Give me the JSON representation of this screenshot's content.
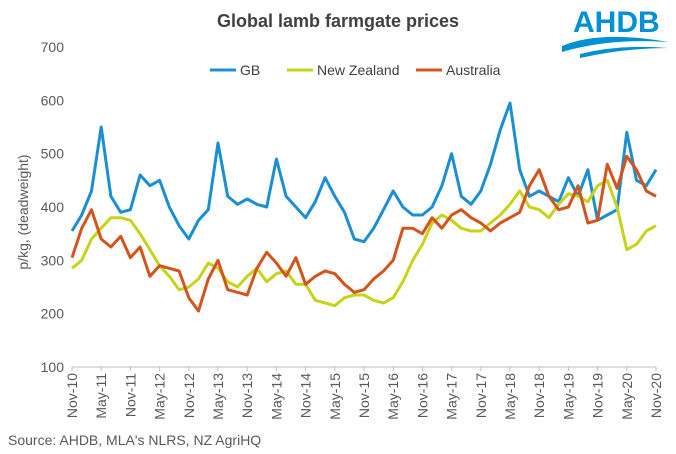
{
  "logo": {
    "text": "AHDB"
  },
  "source": "Source: AHDB, MLA's NLRS, NZ AgriHQ",
  "colors": {
    "GB": "#1b8fd3",
    "New Zealand": "#c5d41a",
    "Australia": "#d4541e",
    "logo": "#0090d4"
  },
  "chart_data": {
    "type": "line",
    "title": "Global lamb farmgate prices",
    "ylabel": "p/kg, (deadweight)",
    "xlabel": "",
    "ylim": [
      100,
      700
    ],
    "yticks": [
      100,
      200,
      300,
      400,
      500,
      600,
      700
    ],
    "grid": false,
    "legend": "top-center",
    "x_tick_labels": [
      "Nov-10",
      "May-11",
      "Nov-11",
      "May-12",
      "Nov-12",
      "May-13",
      "Nov-13",
      "May-14",
      "Nov-14",
      "May-15",
      "Nov-15",
      "May-16",
      "Nov-16",
      "May-17",
      "Nov-17",
      "May-18",
      "Nov-18",
      "May-19",
      "Nov-19",
      "May-20",
      "Nov-20"
    ],
    "x": [
      "Nov-10",
      "Jan-11",
      "Mar-11",
      "May-11",
      "Jul-11",
      "Sep-11",
      "Nov-11",
      "Jan-12",
      "Mar-12",
      "May-12",
      "Jul-12",
      "Sep-12",
      "Nov-12",
      "Jan-13",
      "Mar-13",
      "May-13",
      "Jul-13",
      "Sep-13",
      "Nov-13",
      "Jan-14",
      "Mar-14",
      "May-14",
      "Jul-14",
      "Sep-14",
      "Nov-14",
      "Jan-15",
      "Mar-15",
      "May-15",
      "Jul-15",
      "Sep-15",
      "Nov-15",
      "Jan-16",
      "Mar-16",
      "May-16",
      "Jul-16",
      "Sep-16",
      "Nov-16",
      "Jan-17",
      "Mar-17",
      "May-17",
      "Jul-17",
      "Sep-17",
      "Nov-17",
      "Jan-18",
      "Mar-18",
      "May-18",
      "Jul-18",
      "Sep-18",
      "Nov-18",
      "Jan-19",
      "Mar-19",
      "May-19",
      "Jul-19",
      "Sep-19",
      "Nov-19",
      "Jan-20",
      "Mar-20",
      "May-20",
      "Jul-20",
      "Sep-20",
      "Nov-20"
    ],
    "series": [
      {
        "name": "GB",
        "values": [
          355,
          385,
          430,
          550,
          420,
          390,
          395,
          460,
          440,
          450,
          400,
          365,
          340,
          375,
          395,
          520,
          420,
          405,
          415,
          405,
          400,
          490,
          420,
          400,
          380,
          410,
          455,
          420,
          390,
          340,
          335,
          360,
          395,
          430,
          400,
          385,
          385,
          400,
          440,
          500,
          420,
          405,
          430,
          480,
          545,
          595,
          470,
          420,
          430,
          420,
          410,
          455,
          420,
          470,
          375,
          385,
          395,
          540,
          450,
          440,
          470
        ]
      },
      {
        "name": "New Zealand",
        "values": [
          285,
          300,
          340,
          360,
          380,
          380,
          375,
          350,
          320,
          290,
          270,
          245,
          250,
          265,
          295,
          285,
          260,
          250,
          270,
          285,
          260,
          275,
          280,
          255,
          255,
          225,
          220,
          215,
          230,
          235,
          235,
          225,
          220,
          230,
          260,
          300,
          330,
          370,
          385,
          375,
          360,
          355,
          355,
          370,
          385,
          405,
          430,
          400,
          395,
          380,
          405,
          425,
          420,
          410,
          440,
          450,
          400,
          320,
          330,
          355,
          365
        ]
      },
      {
        "name": "Australia",
        "values": [
          305,
          360,
          395,
          340,
          325,
          345,
          305,
          325,
          270,
          290,
          285,
          280,
          230,
          205,
          265,
          300,
          245,
          240,
          235,
          285,
          315,
          295,
          270,
          305,
          255,
          270,
          280,
          275,
          255,
          240,
          245,
          265,
          280,
          300,
          360,
          360,
          350,
          380,
          360,
          385,
          395,
          380,
          370,
          355,
          370,
          380,
          390,
          440,
          470,
          420,
          395,
          400,
          440,
          370,
          375,
          480,
          435,
          495,
          470,
          430,
          420
        ]
      }
    ]
  }
}
